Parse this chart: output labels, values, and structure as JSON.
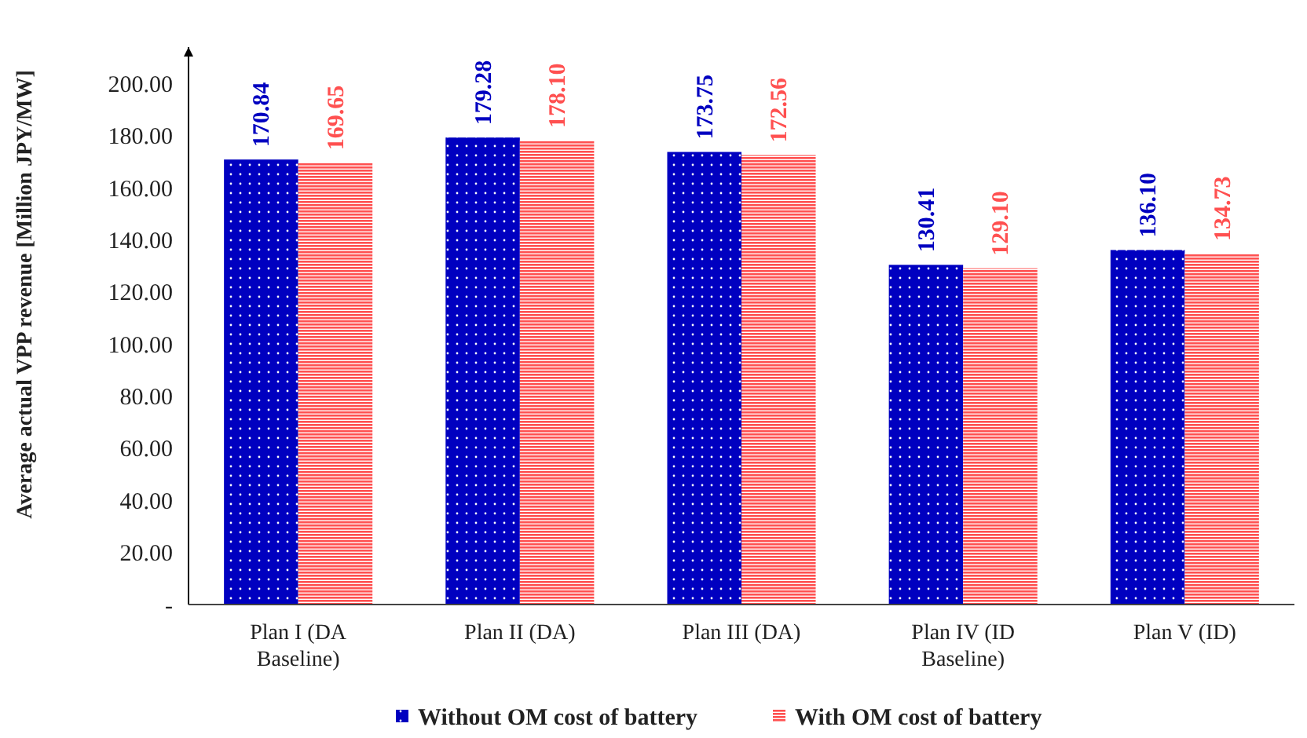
{
  "chart_data": {
    "type": "bar",
    "ylabel": "Average actual VPP revenue [Million JPY/MW]",
    "categories": [
      "Plan I (DA Baseline)",
      "Plan II (DA)",
      "Plan III (DA)",
      "Plan IV (ID Baseline)",
      "Plan V (ID)"
    ],
    "series": [
      {
        "name": "Without OM cost of battery",
        "color": "#0000c0",
        "values": [
          170.84,
          179.28,
          173.75,
          130.41,
          136.1
        ],
        "value_labels": [
          "170.84",
          "179.28",
          "173.75",
          "130.41",
          "136.10"
        ]
      },
      {
        "name": "With OM cost of battery",
        "color": "#ff5050",
        "values": [
          169.65,
          178.1,
          172.56,
          129.1,
          134.73
        ],
        "value_labels": [
          "169.65",
          "178.10",
          "172.56",
          "129.10",
          "134.73"
        ]
      }
    ],
    "ylim": [
      0,
      214
    ],
    "yticks": [
      {
        "value": 0,
        "label": "-"
      },
      {
        "value": 20,
        "label": "20.00"
      },
      {
        "value": 40,
        "label": "40.00"
      },
      {
        "value": 60,
        "label": "60.00"
      },
      {
        "value": 80,
        "label": "80.00"
      },
      {
        "value": 100,
        "label": "100.00"
      },
      {
        "value": 120,
        "label": "120.00"
      },
      {
        "value": 140,
        "label": "140.00"
      },
      {
        "value": 160,
        "label": "160.00"
      },
      {
        "value": 180,
        "label": "180.00"
      },
      {
        "value": 200,
        "label": "200.00"
      }
    ],
    "grid": false,
    "legend": "bottom"
  }
}
